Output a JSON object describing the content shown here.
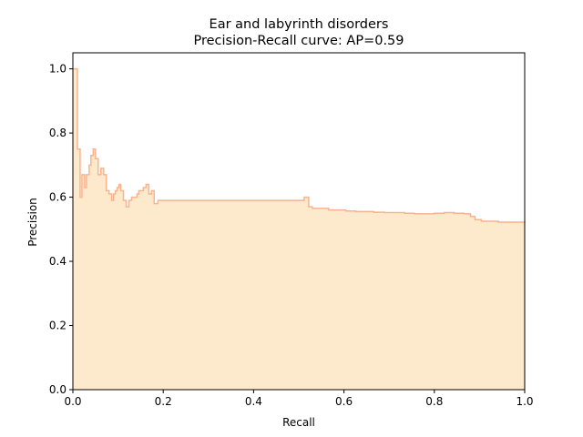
{
  "chart_data": {
    "type": "area",
    "title_lines": [
      "Ear and labyrinth disorders",
      "Precision-Recall curve: AP=0.59"
    ],
    "xlabel": "Recall",
    "ylabel": "Precision",
    "xlim": [
      0.0,
      1.0
    ],
    "ylim": [
      0.0,
      1.05
    ],
    "x_ticks": [
      "0.0",
      "0.2",
      "0.4",
      "0.6",
      "0.8",
      "1.0"
    ],
    "y_ticks": [
      "0.0",
      "0.2",
      "0.4",
      "0.6",
      "0.8",
      "1.0"
    ],
    "grid": false,
    "step": "post",
    "colors": {
      "fill": "#fde9cb",
      "line": "#f8b48f"
    },
    "recall": [
      0.0,
      0.01,
      0.016,
      0.02,
      0.026,
      0.03,
      0.036,
      0.04,
      0.045,
      0.05,
      0.056,
      0.062,
      0.068,
      0.074,
      0.08,
      0.086,
      0.09,
      0.094,
      0.098,
      0.102,
      0.106,
      0.112,
      0.118,
      0.124,
      0.13,
      0.136,
      0.142,
      0.146,
      0.15,
      0.156,
      0.162,
      0.168,
      0.174,
      0.18,
      0.188,
      0.196,
      0.204,
      0.212,
      0.22,
      0.232,
      0.24,
      0.252,
      0.266,
      0.28,
      0.296,
      0.314,
      0.33,
      0.346,
      0.362,
      0.376,
      0.392,
      0.404,
      0.412,
      0.42,
      0.432,
      0.446,
      0.46,
      0.476,
      0.494,
      0.512,
      0.522,
      0.53,
      0.548,
      0.566,
      0.586,
      0.604,
      0.626,
      0.646,
      0.666,
      0.69,
      0.712,
      0.734,
      0.756,
      0.778,
      0.8,
      0.822,
      0.844,
      0.866,
      0.88,
      0.89,
      0.904,
      0.92,
      0.942,
      0.962,
      0.98,
      1.0
    ],
    "precision": [
      1.0,
      0.75,
      0.6,
      0.67,
      0.63,
      0.67,
      0.7,
      0.73,
      0.75,
      0.72,
      0.67,
      0.69,
      0.67,
      0.62,
      0.61,
      0.59,
      0.61,
      0.62,
      0.63,
      0.64,
      0.62,
      0.59,
      0.57,
      0.59,
      0.6,
      0.6,
      0.61,
      0.62,
      0.62,
      0.63,
      0.64,
      0.61,
      0.62,
      0.58,
      0.59,
      0.59,
      0.59,
      0.59,
      0.59,
      0.59,
      0.59,
      0.59,
      0.59,
      0.59,
      0.59,
      0.59,
      0.59,
      0.59,
      0.59,
      0.59,
      0.59,
      0.59,
      0.59,
      0.59,
      0.59,
      0.59,
      0.59,
      0.59,
      0.59,
      0.6,
      0.57,
      0.565,
      0.565,
      0.56,
      0.56,
      0.557,
      0.555,
      0.555,
      0.553,
      0.552,
      0.552,
      0.55,
      0.548,
      0.548,
      0.55,
      0.552,
      0.55,
      0.548,
      0.54,
      0.53,
      0.525,
      0.525,
      0.522,
      0.522,
      0.522,
      0.52
    ]
  }
}
